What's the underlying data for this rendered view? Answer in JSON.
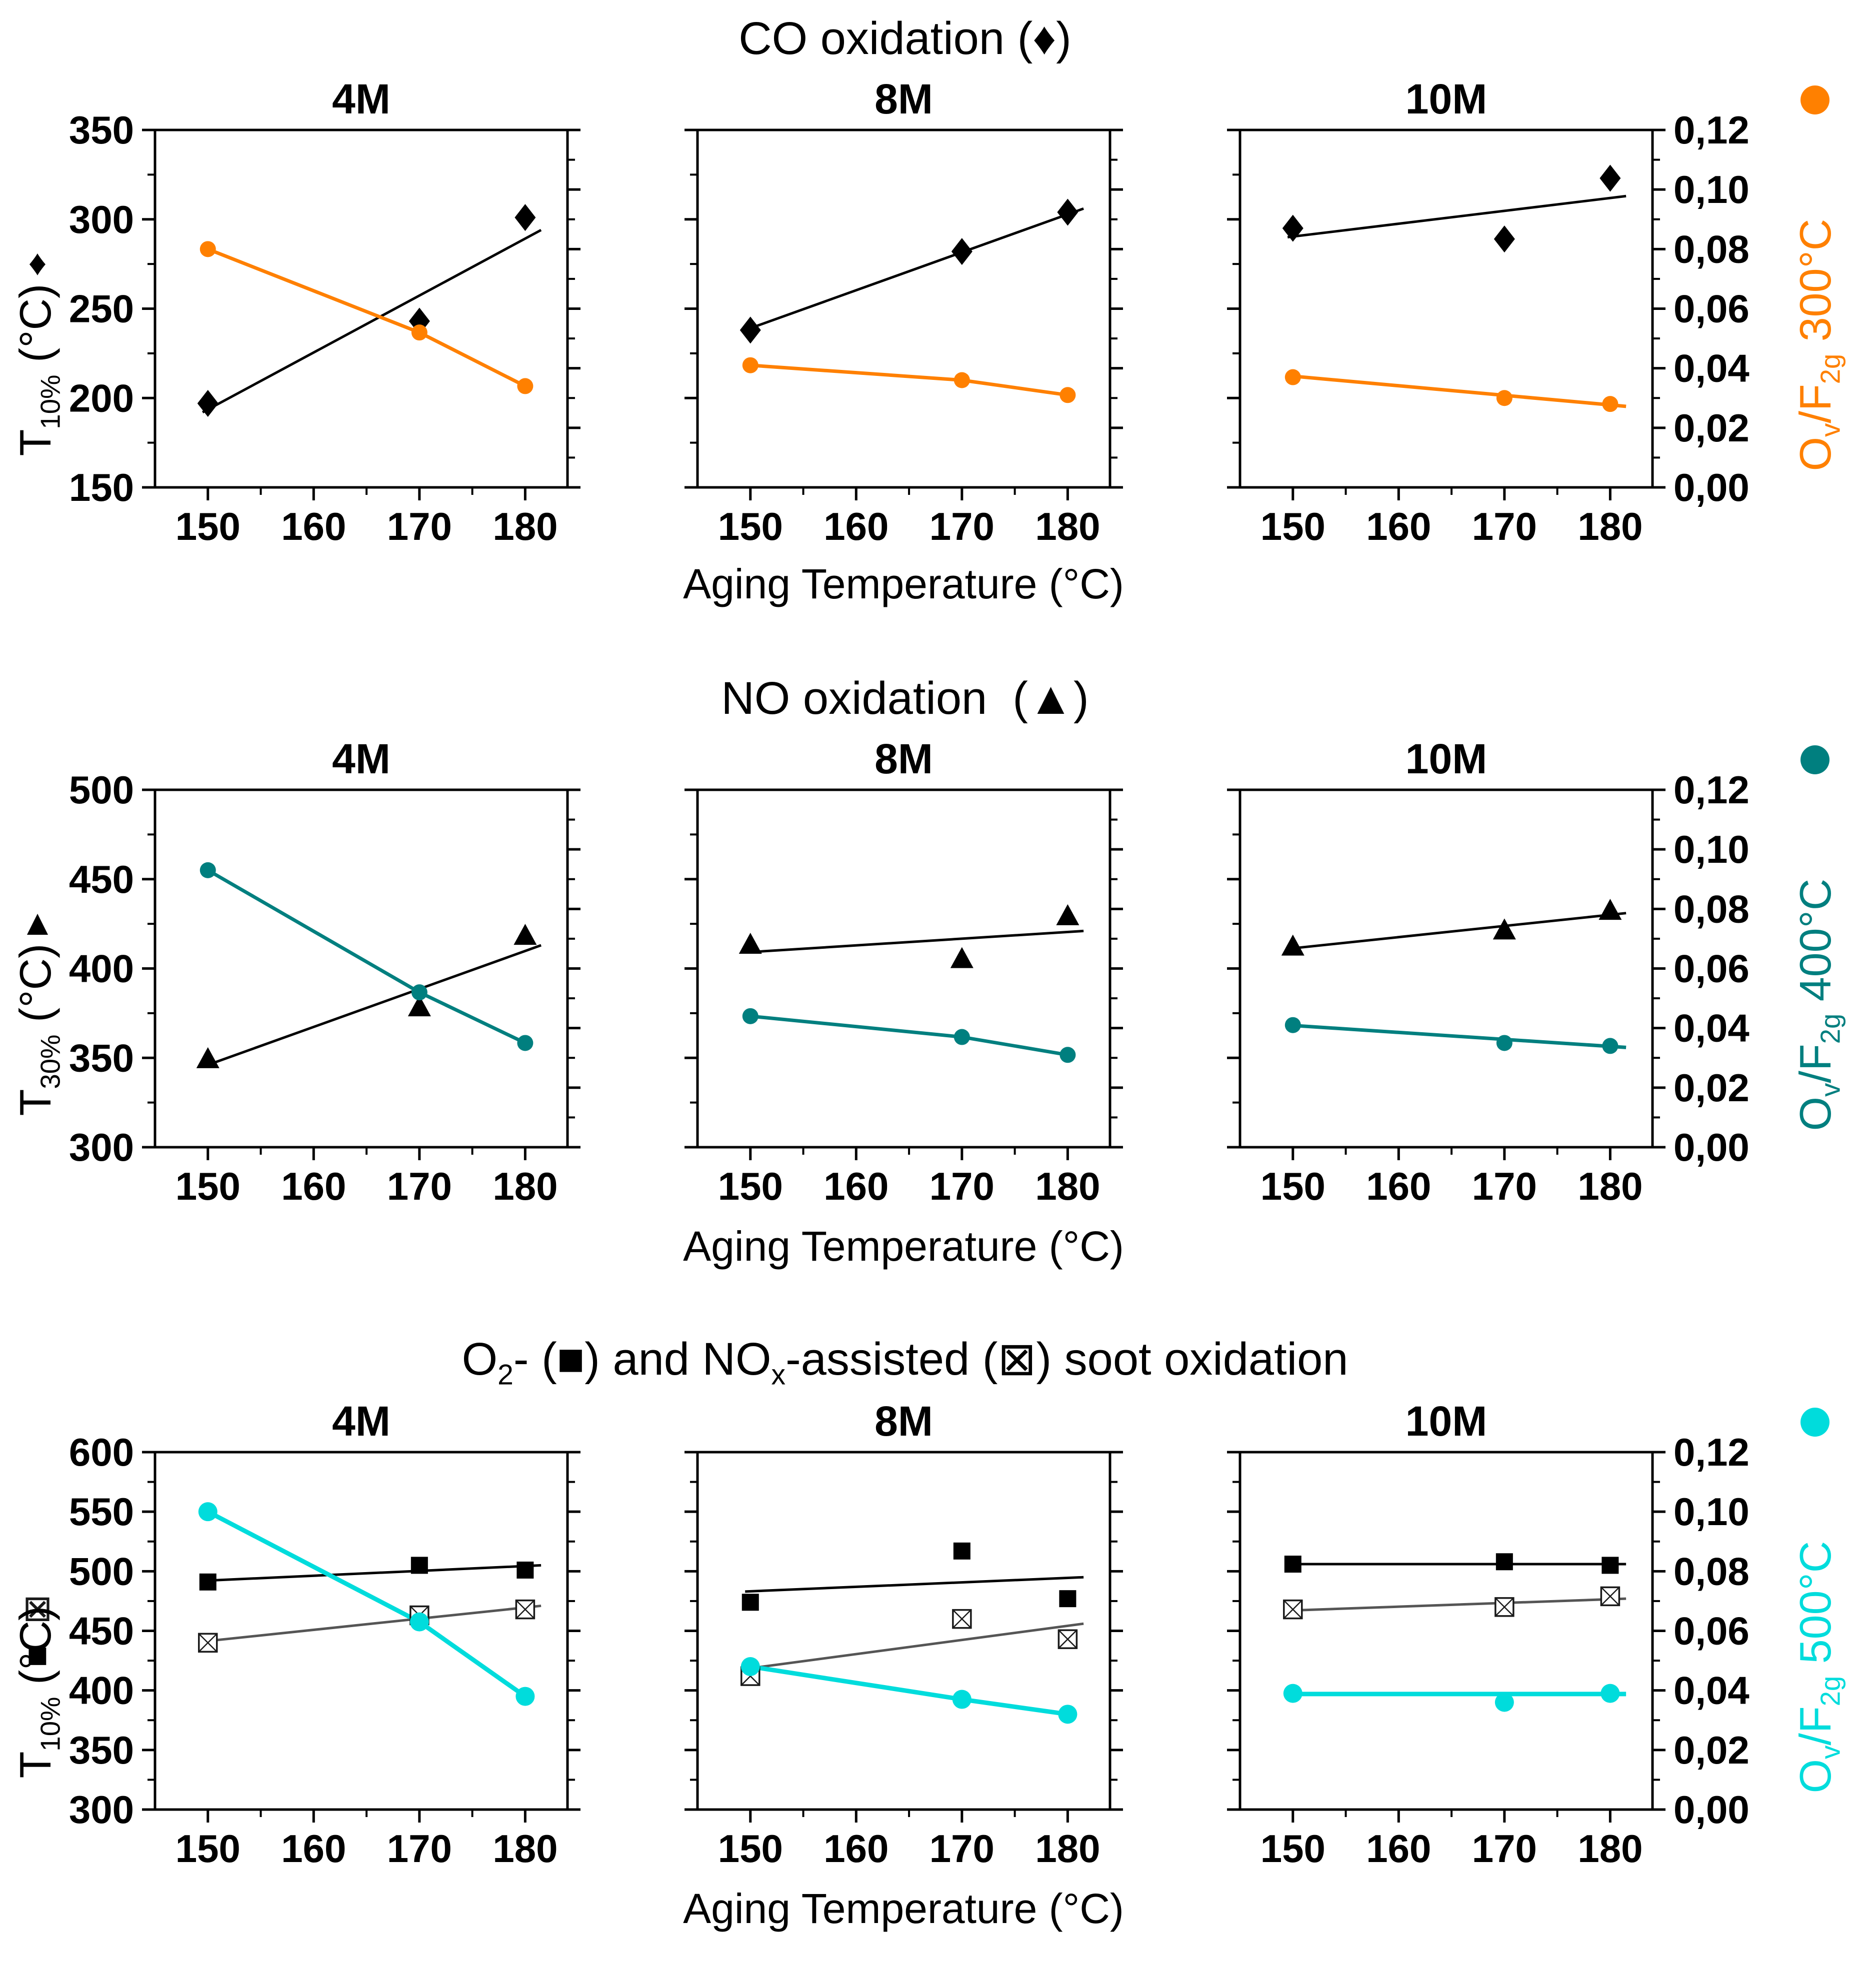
{
  "figure_title_note": "3x3 grid of scatter plots; aging time columns 4M, 8M, 10M",
  "decimal_style": "comma",
  "colors": {
    "black": "#000000",
    "orange": "#FF8000",
    "teal": "#007F7F",
    "cyan": "#00DCDC",
    "gray_line": "#555555",
    "background": "#ffffff"
  },
  "chart_data": {
    "type": "scatter",
    "x_categories": [
      150,
      170,
      180
    ],
    "x_ticks": [
      150,
      160,
      170,
      180
    ],
    "x_minor_ticks": [
      155,
      165,
      175
    ],
    "x_range": [
      145,
      184
    ],
    "right_axis_range": [
      0,
      0.12
    ],
    "right_tick_labels": [
      "0,12",
      "0,10",
      "0,08",
      "0,06",
      "0,04",
      "0,02",
      "0,00"
    ],
    "rows": [
      {
        "title": "CO oxidation (♦)",
        "xlabel": "Aging Temperature (°C)",
        "left": {
          "label": "T_{10%} (°C)",
          "range": [
            150,
            350
          ],
          "ticks": [
            350,
            300,
            250,
            200,
            150
          ],
          "legend_markers": [
            "diamond"
          ]
        },
        "right": {
          "label": "O_{v}/F_{2g} 300°C",
          "color": "#FF8000",
          "legend_marker": "circle"
        },
        "panels": [
          {
            "name": "4M",
            "series": [
              {
                "axis": "left",
                "marker": "diamond",
                "color": "#000000",
                "line_color": "#000000",
                "points": [
                  197,
                  243,
                  301
                ],
                "line": [
                  192,
                  294
                ]
              },
              {
                "axis": "right",
                "marker": "circle",
                "color": "#FF8000",
                "line_color": "#FF8000",
                "points": [
                  0.08,
                  0.052,
                  0.034
                ],
                "line": "through"
              }
            ]
          },
          {
            "name": "8M",
            "series": [
              {
                "axis": "left",
                "marker": "diamond",
                "color": "#000000",
                "line_color": "#000000",
                "points": [
                  238,
                  282,
                  304
                ],
                "line": [
                  238,
                  306
                ]
              },
              {
                "axis": "right",
                "marker": "circle",
                "color": "#FF8000",
                "line_color": "#FF8000",
                "points": [
                  0.041,
                  0.036,
                  0.031
                ],
                "line": "through"
              }
            ]
          },
          {
            "name": "10M",
            "series": [
              {
                "axis": "left",
                "marker": "diamond",
                "color": "#000000",
                "line_color": "#000000",
                "points": [
                  295,
                  289,
                  323
                ],
                "line": [
                  290,
                  313
                ]
              },
              {
                "axis": "right",
                "marker": "circle",
                "color": "#FF8000",
                "line_color": "#FF8000",
                "points": [
                  0.037,
                  0.03,
                  0.028
                ],
                "line": [
                  0.0375,
                  0.0272
                ]
              }
            ]
          }
        ]
      },
      {
        "title": "NO oxidation  (▲)",
        "xlabel": "Aging Temperature (°C)",
        "left": {
          "label": "T_{30%} (°C)",
          "range": [
            300,
            500
          ],
          "ticks": [
            500,
            450,
            400,
            350,
            300
          ],
          "legend_markers": [
            "triangle"
          ]
        },
        "right": {
          "label": "O_{v}/F_{2g} 400°C",
          "color": "#007F7F",
          "legend_marker": "circle"
        },
        "panels": [
          {
            "name": "4M",
            "series": [
              {
                "axis": "left",
                "marker": "triangle",
                "color": "#000000",
                "line_color": "#000000",
                "points": [
                  349,
                  378,
                  418
                ],
                "line": [
                  345,
                  413
                ]
              },
              {
                "axis": "right",
                "marker": "circle",
                "color": "#007F7F",
                "line_color": "#007F7F",
                "points": [
                  0.093,
                  0.052,
                  0.035
                ],
                "line": "through"
              }
            ]
          },
          {
            "name": "8M",
            "series": [
              {
                "axis": "left",
                "marker": "triangle",
                "color": "#000000",
                "line_color": "#000000",
                "points": [
                  413,
                  405,
                  429
                ],
                "line": [
                  409,
                  421
                ]
              },
              {
                "axis": "right",
                "marker": "circle",
                "color": "#007F7F",
                "line_color": "#007F7F",
                "points": [
                  0.044,
                  0.037,
                  0.031
                ],
                "line": "through"
              }
            ]
          },
          {
            "name": "10M",
            "series": [
              {
                "axis": "left",
                "marker": "triangle",
                "color": "#000000",
                "line_color": "#000000",
                "points": [
                  412,
                  421,
                  432
                ],
                "line": [
                  411,
                  431
                ]
              },
              {
                "axis": "right",
                "marker": "circle",
                "color": "#007F7F",
                "line_color": "#007F7F",
                "points": [
                  0.041,
                  0.035,
                  0.034
                ],
                "line": [
                  0.041,
                  0.0335
                ]
              }
            ]
          }
        ]
      },
      {
        "title": "O_{2}- (■) and NO_{x}-assisted (⊠) soot oxidation",
        "xlabel": "Aging Temperature (°C)",
        "left": {
          "label": "T_{10%} (°C)",
          "range": [
            300,
            600
          ],
          "ticks": [
            600,
            550,
            500,
            450,
            400,
            350,
            300
          ],
          "legend_markers": [
            "crossed-square",
            "square"
          ]
        },
        "right": {
          "label": "O_{v}/F_{2g} 500°C",
          "color": "#00DCDC",
          "legend_marker": "circle"
        },
        "panels": [
          {
            "name": "4M",
            "series": [
              {
                "axis": "left",
                "marker": "square",
                "color": "#000000",
                "line_color": "#000000",
                "points": [
                  491,
                  505,
                  501
                ],
                "line": [
                  492,
                  505
                ]
              },
              {
                "axis": "left",
                "marker": "crossed-square",
                "color": "#1a1a1a",
                "line_color": "#555555",
                "points": [
                  440,
                  463,
                  468
                ],
                "line": [
                  441,
                  471
                ]
              },
              {
                "axis": "right",
                "marker": "circle",
                "color": "#00DCDC",
                "line_color": "#00DCDC",
                "points": [
                  0.1,
                  0.063,
                  0.038
                ],
                "line": "through"
              }
            ]
          },
          {
            "name": "8M",
            "series": [
              {
                "axis": "left",
                "marker": "square",
                "color": "#000000",
                "line_color": "#000000",
                "points": [
                  474,
                  517,
                  477
                ],
                "line": [
                  483,
                  495
                ]
              },
              {
                "axis": "left",
                "marker": "crossed-square",
                "color": "#1a1a1a",
                "line_color": "#555555",
                "points": [
                  412,
                  460,
                  443
                ],
                "line": [
                  418,
                  456
                ]
              },
              {
                "axis": "right",
                "marker": "circle",
                "color": "#00DCDC",
                "line_color": "#00DCDC",
                "points": [
                  0.048,
                  0.037,
                  0.032
                ],
                "line": "through"
              }
            ]
          },
          {
            "name": "10M",
            "series": [
              {
                "axis": "left",
                "marker": "square",
                "color": "#000000",
                "line_color": "#000000",
                "points": [
                  506,
                  508,
                  505
                ],
                "line": [
                  506,
                  506
                ]
              },
              {
                "axis": "left",
                "marker": "crossed-square",
                "color": "#1a1a1a",
                "line_color": "#555555",
                "points": [
                  468,
                  470,
                  479
                ],
                "line": [
                  467,
                  477
                ]
              },
              {
                "axis": "right",
                "marker": "circle",
                "color": "#00DCDC",
                "line_color": "#00DCDC",
                "points": [
                  0.039,
                  0.036,
                  0.039
                ],
                "line": [
                  0.0388,
                  0.0388
                ]
              }
            ]
          }
        ]
      }
    ]
  }
}
